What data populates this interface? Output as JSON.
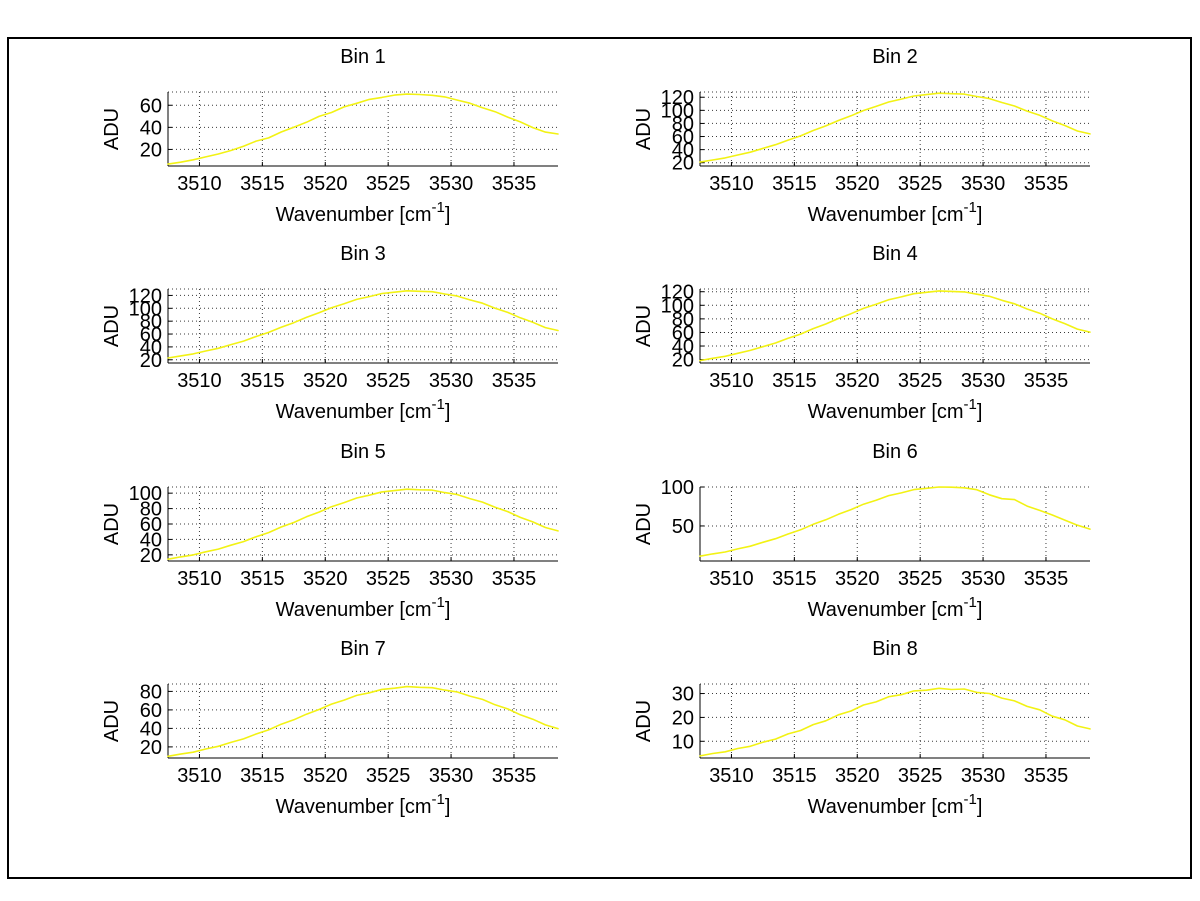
{
  "figure": {
    "window_background": "#ffffff",
    "frame_color": "#000000",
    "axis_color": "#000000",
    "grid_color": "#3a3a3a",
    "line_color": "#f2f214"
  },
  "chart_data": {
    "type": "line",
    "grid": true,
    "layout": "4x2 subplot grid",
    "line_color": "#f2f214",
    "ylabel": "ADU",
    "xlabel_parts": {
      "prefix": "Wavenumber [cm",
      "sup": "-1",
      "suffix": "]"
    },
    "xlim": [
      3507.5,
      3538.5
    ],
    "xticks": [
      3510,
      3515,
      3520,
      3525,
      3530,
      3535
    ],
    "x": [
      3507.5,
      3508.5,
      3509.5,
      3510.5,
      3511.5,
      3512.5,
      3513.5,
      3514.5,
      3515.5,
      3516.5,
      3517.5,
      3518.5,
      3519.5,
      3520.5,
      3521.5,
      3522.5,
      3523.5,
      3524.5,
      3525.5,
      3526.5,
      3527.5,
      3528.5,
      3529.5,
      3530.5,
      3531.5,
      3532.5,
      3533.5,
      3534.5,
      3535.5,
      3536.5,
      3537.5,
      3538.5
    ],
    "subplots": [
      {
        "title": "Bin 1",
        "ylim": [
          5,
          72
        ],
        "yticks": [
          20,
          40,
          60
        ],
        "values": [
          6.7,
          8.4,
          10.6,
          13.2,
          15.9,
          19.0,
          22.8,
          27.5,
          30.4,
          35.8,
          40.1,
          44.6,
          49.9,
          53.4,
          58.5,
          61.8,
          65.3,
          67.1,
          69.2,
          70.1,
          69.7,
          69.0,
          67.6,
          64.7,
          61.9,
          57.8,
          54.2,
          49.3,
          44.9,
          39.8,
          35.7,
          34.0
        ]
      },
      {
        "title": "Bin 2",
        "ylim": [
          15,
          128
        ],
        "yticks": [
          20,
          40,
          60,
          80,
          100,
          120
        ],
        "values": [
          21.0,
          24.2,
          27.3,
          31.8,
          36.1,
          41.9,
          47.5,
          54.6,
          61.0,
          69.2,
          76.3,
          84.5,
          91.6,
          99.7,
          106.0,
          112.8,
          117.2,
          121.9,
          124.1,
          126.2,
          125.4,
          124.8,
          121.2,
          117.9,
          112.0,
          106.6,
          98.9,
          92.4,
          83.8,
          76.9,
          68.4,
          64.0
        ]
      },
      {
        "title": "Bin 3",
        "ylim": [
          15,
          130
        ],
        "yticks": [
          20,
          40,
          60,
          80,
          100,
          120
        ],
        "values": [
          22.8,
          26.1,
          29.2,
          33.7,
          37.9,
          43.6,
          49.1,
          56.2,
          62.5,
          70.7,
          77.6,
          85.9,
          93.0,
          101.0,
          107.2,
          113.9,
          118.2,
          123.0,
          125.1,
          127.2,
          126.4,
          125.8,
          122.2,
          119.0,
          113.1,
          107.9,
          100.2,
          93.7,
          85.2,
          78.3,
          70.0,
          65.5
        ]
      },
      {
        "title": "Bin 4",
        "ylim": [
          15,
          124
        ],
        "yticks": [
          20,
          40,
          60,
          80,
          100,
          120
        ],
        "values": [
          18.6,
          21.9,
          24.9,
          29.3,
          33.5,
          39.0,
          44.4,
          51.5,
          57.6,
          65.7,
          72.4,
          80.6,
          87.6,
          95.4,
          101.5,
          108.2,
          112.4,
          117.1,
          119.1,
          121.2,
          120.4,
          119.8,
          116.3,
          113.2,
          107.4,
          102.2,
          94.6,
          88.3,
          79.9,
          73.1,
          65.0,
          60.5
        ]
      },
      {
        "title": "Bin 5",
        "ylim": [
          12,
          108
        ],
        "yticks": [
          20,
          40,
          60,
          80,
          100
        ],
        "values": [
          14.4,
          17.3,
          19.9,
          23.9,
          27.5,
          32.5,
          37.2,
          43.5,
          48.9,
          56.1,
          62.0,
          69.3,
          75.4,
          82.4,
          87.7,
          93.7,
          97.3,
          101.6,
          103.3,
          105.2,
          104.4,
          104.0,
          100.8,
          98.1,
          92.9,
          88.4,
          81.6,
          76.1,
          68.6,
          62.7,
          55.4,
          51.0
        ]
      },
      {
        "title": "Bin 6",
        "ylim": [
          5,
          100
        ],
        "yticks": [
          50,
          100
        ],
        "values": [
          11.2,
          14.1,
          16.6,
          20.5,
          24.0,
          29.0,
          33.6,
          39.7,
          45.0,
          52.1,
          57.9,
          65.0,
          71.0,
          77.9,
          83.0,
          88.9,
          92.4,
          96.7,
          98.3,
          100.0,
          99.7,
          99.0,
          96.5,
          90.0,
          85.0,
          83.8,
          75.5,
          70.0,
          64.0,
          57.5,
          51.0,
          46.0
        ]
      },
      {
        "title": "Bin 7",
        "ylim": [
          8,
          88
        ],
        "yticks": [
          20,
          40,
          60,
          80
        ],
        "values": [
          9.8,
          12.2,
          14.3,
          17.7,
          20.6,
          24.9,
          28.7,
          34.0,
          38.4,
          44.5,
          49.3,
          55.4,
          60.4,
          66.3,
          70.6,
          75.7,
          78.5,
          82.2,
          83.5,
          85.2,
          84.4,
          84.0,
          81.4,
          79.3,
          74.9,
          71.3,
          65.5,
          61.1,
          54.7,
          50.0,
          43.8,
          39.8
        ]
      },
      {
        "title": "Bin 8",
        "ylim": [
          3,
          34
        ],
        "yticks": [
          10,
          20,
          30
        ],
        "values": [
          3.9,
          4.9,
          5.6,
          7.0,
          7.9,
          9.6,
          10.9,
          13.1,
          14.5,
          17.0,
          18.6,
          21.1,
          22.7,
          25.2,
          26.5,
          28.7,
          29.5,
          31.1,
          31.4,
          32.2,
          31.7,
          31.9,
          30.5,
          30.0,
          28.1,
          26.9,
          24.6,
          23.2,
          20.5,
          19.0,
          16.4,
          15.2
        ]
      }
    ]
  }
}
